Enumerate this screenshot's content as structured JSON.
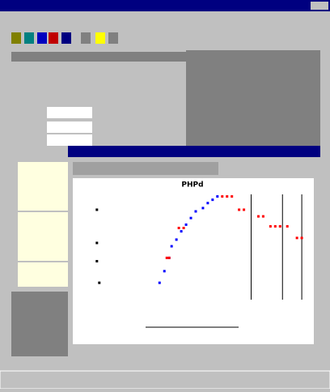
{
  "plot": {
    "title": "PHPd",
    "xlim": [
      0,
      100
    ],
    "ylim": [
      0,
      100
    ],
    "series": [
      {
        "color": "#0000ff",
        "x": [
          36,
          38,
          40,
          41,
          43,
          45,
          47,
          49,
          51,
          54,
          56,
          58,
          60
        ],
        "y": [
          37,
          44,
          52,
          59,
          63,
          68,
          72,
          76,
          80,
          82,
          85,
          87,
          89
        ]
      },
      {
        "color": "#ff0000",
        "x": [
          39,
          40,
          44,
          46,
          62,
          64,
          66,
          69,
          71,
          77,
          79,
          82,
          84,
          86,
          89,
          93,
          95
        ],
        "y": [
          52,
          52,
          70,
          70,
          89,
          89,
          89,
          81,
          81,
          77,
          77,
          71,
          71,
          71,
          71,
          64,
          64
        ]
      },
      {
        "color": "#000000",
        "x": [
          10,
          10,
          10,
          11
        ],
        "y": [
          81,
          61,
          50,
          37
        ]
      }
    ],
    "vlines": [
      74,
      87,
      95
    ]
  }
}
